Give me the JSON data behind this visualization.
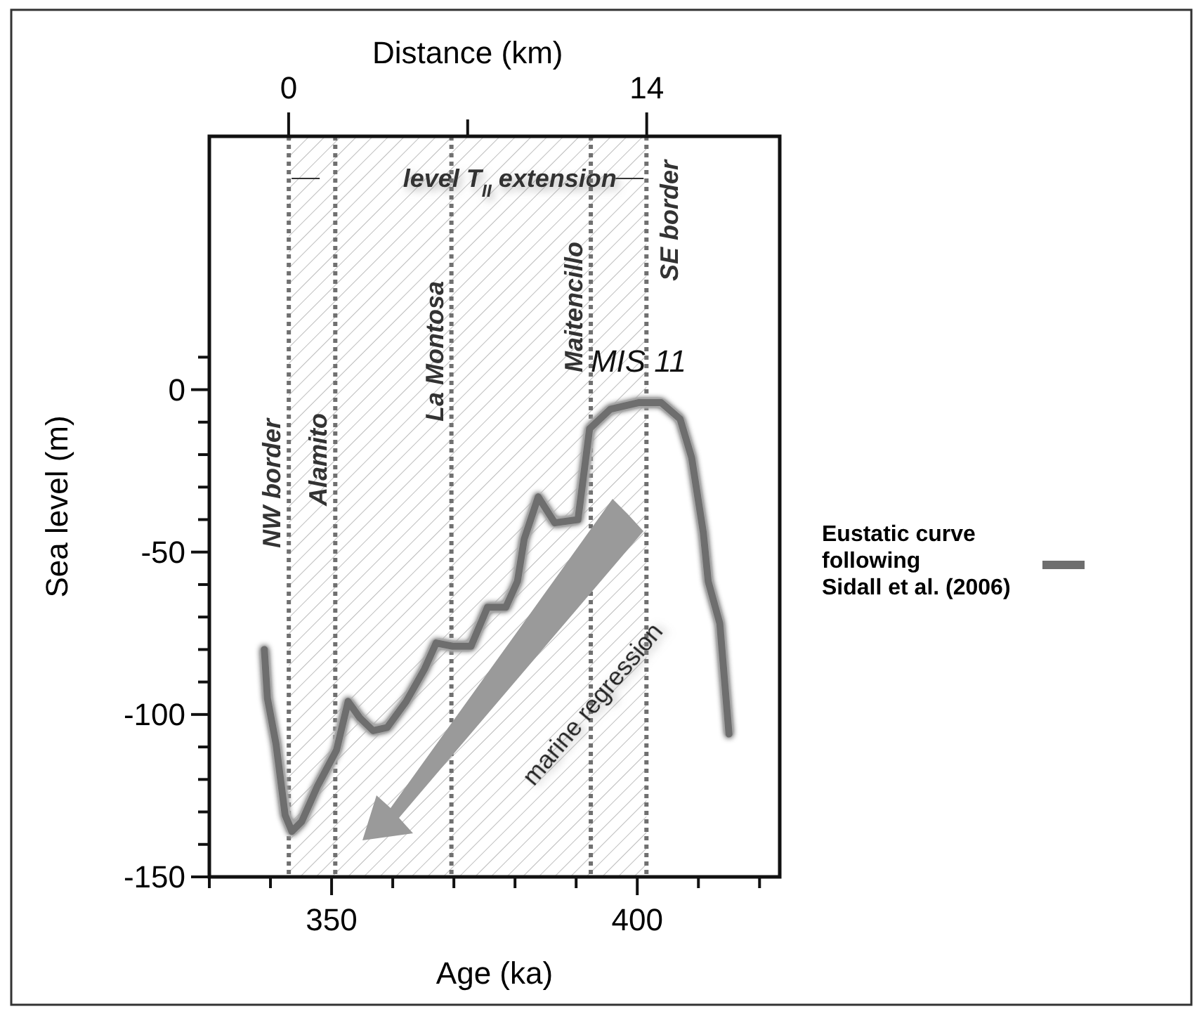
{
  "chart_data": {
    "type": "line",
    "xlabel": "Age (ka)",
    "ylabel": "Sea level (m)",
    "x2label": "Distance (km)",
    "xlim": [
      330,
      423.3
    ],
    "xticks": [
      {
        "value": 330,
        "label": null
      },
      {
        "value": 340,
        "label": null
      },
      350,
      {
        "value": 360,
        "label": null
      },
      {
        "value": 370,
        "label": null
      },
      {
        "value": 380,
        "label": null
      },
      {
        "value": 390,
        "label": null
      },
      400,
      {
        "value": 410,
        "label": null
      },
      {
        "value": 420,
        "label": null
      }
    ],
    "ylim": [
      -150,
      78
    ],
    "yticks": [
      -150,
      {
        "value": -140,
        "label": null
      },
      {
        "value": -130,
        "label": null
      },
      {
        "value": -120,
        "label": null
      },
      {
        "value": -110,
        "label": null
      },
      -100,
      {
        "value": -90,
        "label": null
      },
      {
        "value": -80,
        "label": null
      },
      {
        "value": -70,
        "label": null
      },
      {
        "value": -60,
        "label": null
      },
      -50,
      {
        "value": -40,
        "label": null
      },
      {
        "value": -30,
        "label": null
      },
      {
        "value": -20,
        "label": null
      },
      {
        "value": -10,
        "label": null
      },
      0,
      {
        "value": 10,
        "label": null
      }
    ],
    "x2lim": [
      -3.1,
      19.2
    ],
    "x2ticks": [
      0,
      {
        "value": 7,
        "label": null
      },
      14
    ],
    "x": [
      339.0,
      339.5,
      340.9,
      342.4,
      343.5,
      345.1,
      347.7,
      350.8,
      352.7,
      354.6,
      356.8,
      359.1,
      362.2,
      365.2,
      367.1,
      369.8,
      372.8,
      375.5,
      378.5,
      380.4,
      381.5,
      383.8,
      386.5,
      390.3,
      392.2,
      395.6,
      400.2,
      403.9,
      407.0,
      408.9,
      410.8,
      411.6,
      413.5,
      415.0
    ],
    "series": [
      {
        "name": "Eustatic curve following Sidall et al. (2006)",
        "color": "#6e6e6e",
        "values": [
          -80,
          -95,
          -109,
          -131,
          -136,
          -133,
          -122,
          -111,
          -96,
          -101,
          -105,
          -104,
          -96,
          -86,
          -78,
          -79,
          -79,
          -67,
          -67,
          -59,
          -46,
          -33,
          -41,
          -40,
          -12,
          -6,
          -4,
          -4,
          -9,
          -21,
          -44,
          -59,
          -72,
          -106
        ]
      }
    ],
    "ref_lines": [
      {
        "axis": "x",
        "value": 343.0,
        "label": "NW border",
        "color": "#707070",
        "line_style": "dotted"
      },
      {
        "axis": "x",
        "value": 350.6,
        "label": "Alamito",
        "color": "#707070",
        "line_style": "dotted"
      },
      {
        "axis": "x",
        "value": 369.6,
        "label": "La Montosa",
        "color": "#707070",
        "line_style": "dotted"
      },
      {
        "axis": "x",
        "value": 392.4,
        "label": "Maitencillo",
        "color": "#707070",
        "line_style": "dotted"
      },
      {
        "axis": "x",
        "value": 401.5,
        "label": "SE border",
        "color": "#707070",
        "line_style": "dotted"
      }
    ],
    "bands": [
      {
        "axis": "x",
        "from": 343.0,
        "to": 401.5,
        "label": "level T$_{II}$ extension",
        "color": "#bdbdbd"
      }
    ],
    "annotations": [
      {
        "text": "MIS 11",
        "x": 400.2,
        "y": -4
      },
      "marine regression"
    ],
    "legend": "right",
    "grid": false,
    "line_style": "solid",
    "marker": "none"
  }
}
